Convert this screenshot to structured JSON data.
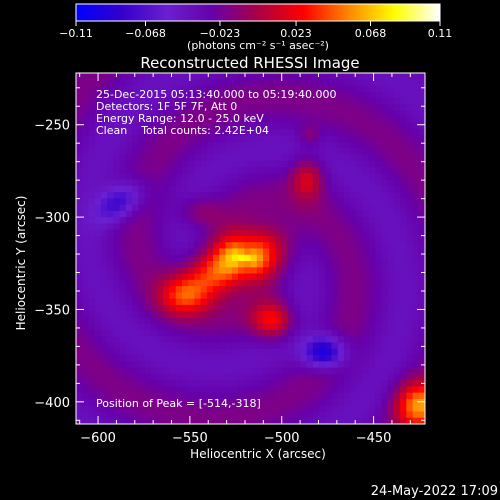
{
  "chart_data": {
    "type": "heatmap",
    "title": "Reconstructed RHESSI Image",
    "xlabel": "Heliocentric X (arcsec)",
    "ylabel": "Heliocentric Y (arcsec)",
    "xlim": [
      -612,
      -422
    ],
    "ylim": [
      -412,
      -222
    ],
    "x_ticks": [
      -600,
      -550,
      -500,
      -450
    ],
    "y_ticks": [
      -250,
      -300,
      -350,
      -400
    ],
    "x_tick_labels": [
      "−600",
      "−550",
      "−500",
      "−450"
    ],
    "y_tick_labels": [
      "−250",
      "−300",
      "−350",
      "−400"
    ],
    "colorbar": {
      "range": [
        -0.11,
        0.11
      ],
      "tick_values": [
        -0.11,
        -0.068,
        -0.023,
        0.023,
        0.068,
        0.11
      ],
      "tick_labels": [
        "−0.11",
        "−0.068",
        "−0.023",
        "0.023",
        "0.068",
        "0.11"
      ],
      "units": "(photons cm⁻² s⁻¹ asec⁻²)"
    },
    "annotations": [
      "25-Dec-2015 05:13:40.000 to 05:19:40.000",
      "Detectors: 1F 5F 7F, Att 0",
      "Energy Range: 12.0 - 25.0 keV",
      "Clean    Total counts: 2.42E+04"
    ],
    "peak_text": "Position of Peak = [-514,-318]",
    "peak_position": [
      -514,
      -318
    ],
    "sources": [
      {
        "x": -530,
        "y": -327,
        "sx": 19,
        "sy": 9,
        "angle_deg": 28,
        "amp": 0.095
      },
      {
        "x": -510,
        "y": -318,
        "sx": 12,
        "sy": 9,
        "angle_deg": 0,
        "amp": 0.03
      },
      {
        "x": -505,
        "y": -356,
        "sx": 8,
        "sy": 7,
        "angle_deg": 0,
        "amp": 0.06
      },
      {
        "x": -553,
        "y": -343,
        "sx": 9,
        "sy": 7,
        "angle_deg": 0,
        "amp": 0.04
      },
      {
        "x": -545,
        "y": -297,
        "sx": 8,
        "sy": 6,
        "angle_deg": 0,
        "amp": 0.025
      },
      {
        "x": -486,
        "y": -279,
        "sx": 6,
        "sy": 8,
        "angle_deg": 0,
        "amp": 0.045
      },
      {
        "x": -485,
        "y": -256,
        "sx": 4,
        "sy": 4,
        "angle_deg": 0,
        "amp": 0.02
      },
      {
        "x": -425,
        "y": -402,
        "sx": 9,
        "sy": 9,
        "angle_deg": 0,
        "amp": 0.08
      },
      {
        "x": -588,
        "y": -292,
        "sx": 10,
        "sy": 6,
        "angle_deg": 35,
        "amp": -0.05
      },
      {
        "x": -477,
        "y": -373,
        "sx": 8,
        "sy": 6,
        "angle_deg": 0,
        "amp": -0.075
      }
    ],
    "background_level": -0.03
  },
  "footer": {
    "date": "24-May-2022 17:09"
  },
  "colors": {
    "background": "#000000",
    "text": "#ffffff",
    "colormap": [
      "#0000ff",
      "#3300cc",
      "#6a1fd0",
      "#6600aa",
      "#aa0044",
      "#ff0000",
      "#ff8800",
      "#ffff00",
      "#ffffff"
    ]
  }
}
